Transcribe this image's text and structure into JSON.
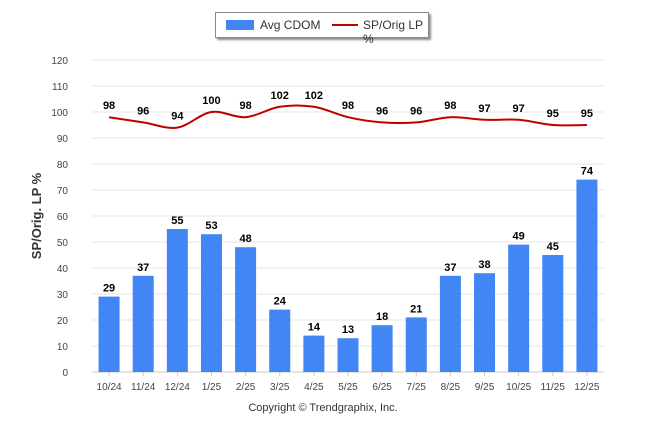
{
  "chart_data": {
    "type": "bar+line",
    "title": "",
    "ylabel": "SP/Orig. LP %",
    "xlabel": "",
    "ylim": [
      0,
      120
    ],
    "yticks": [
      0,
      10,
      20,
      30,
      40,
      50,
      60,
      70,
      80,
      90,
      100,
      110,
      120
    ],
    "grid": true,
    "legend": "top-center",
    "categories": [
      "10/24",
      "11/24",
      "12/24",
      "1/25",
      "2/25",
      "3/25",
      "4/25",
      "5/25",
      "6/25",
      "7/25",
      "8/25",
      "9/25",
      "10/25",
      "11/25",
      "12/25"
    ],
    "series": [
      {
        "name": "Avg CDOM",
        "type": "bar",
        "color": "#4285f4",
        "values": [
          29,
          37,
          55,
          53,
          48,
          24,
          14,
          13,
          18,
          21,
          37,
          38,
          49,
          45,
          74
        ]
      },
      {
        "name": "SP/Orig LP %",
        "type": "line",
        "color": "#c00000",
        "values": [
          98,
          96,
          94,
          100,
          98,
          102,
          102,
          98,
          96,
          96,
          98,
          97,
          97,
          95,
          95
        ]
      }
    ]
  },
  "legend": {
    "bar_label": "Avg CDOM",
    "line_label": "SP/Orig LP %"
  },
  "footer": {
    "copyright": "Copyright © Trendgraphix, Inc."
  }
}
